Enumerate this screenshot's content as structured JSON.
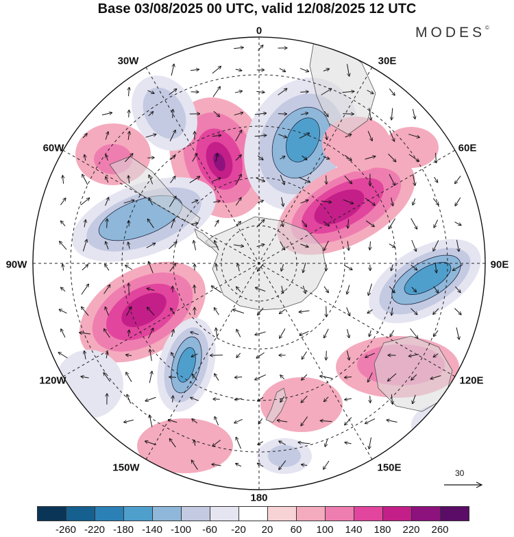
{
  "title": "Base 03/08/2025 00 UTC, valid 12/08/2025 12 UTC",
  "brand": "MODES",
  "brand_mark": "©",
  "longitude_labels": [
    "0",
    "30E",
    "60E",
    "90E",
    "120E",
    "150E",
    "180",
    "150W",
    "120W",
    "90W",
    "60W",
    "30W"
  ],
  "reference_vector": {
    "label": "30",
    "icon": "arrow-right-icon"
  },
  "colorbar": {
    "colors": [
      "#0a3556",
      "#15608f",
      "#2b80b6",
      "#4f9fcd",
      "#8fb7da",
      "#c4cae2",
      "#e5e4f1",
      "#ffffff",
      "#f7d3d6",
      "#f4abbe",
      "#ef7eb0",
      "#e2459d",
      "#c41f89",
      "#8e127e",
      "#5a0c66"
    ],
    "tick_labels": [
      "-260",
      "-220",
      "-180",
      "-140",
      "-100",
      "-60",
      "-20",
      "20",
      "60",
      "100",
      "140",
      "180",
      "220",
      "260"
    ]
  }
}
